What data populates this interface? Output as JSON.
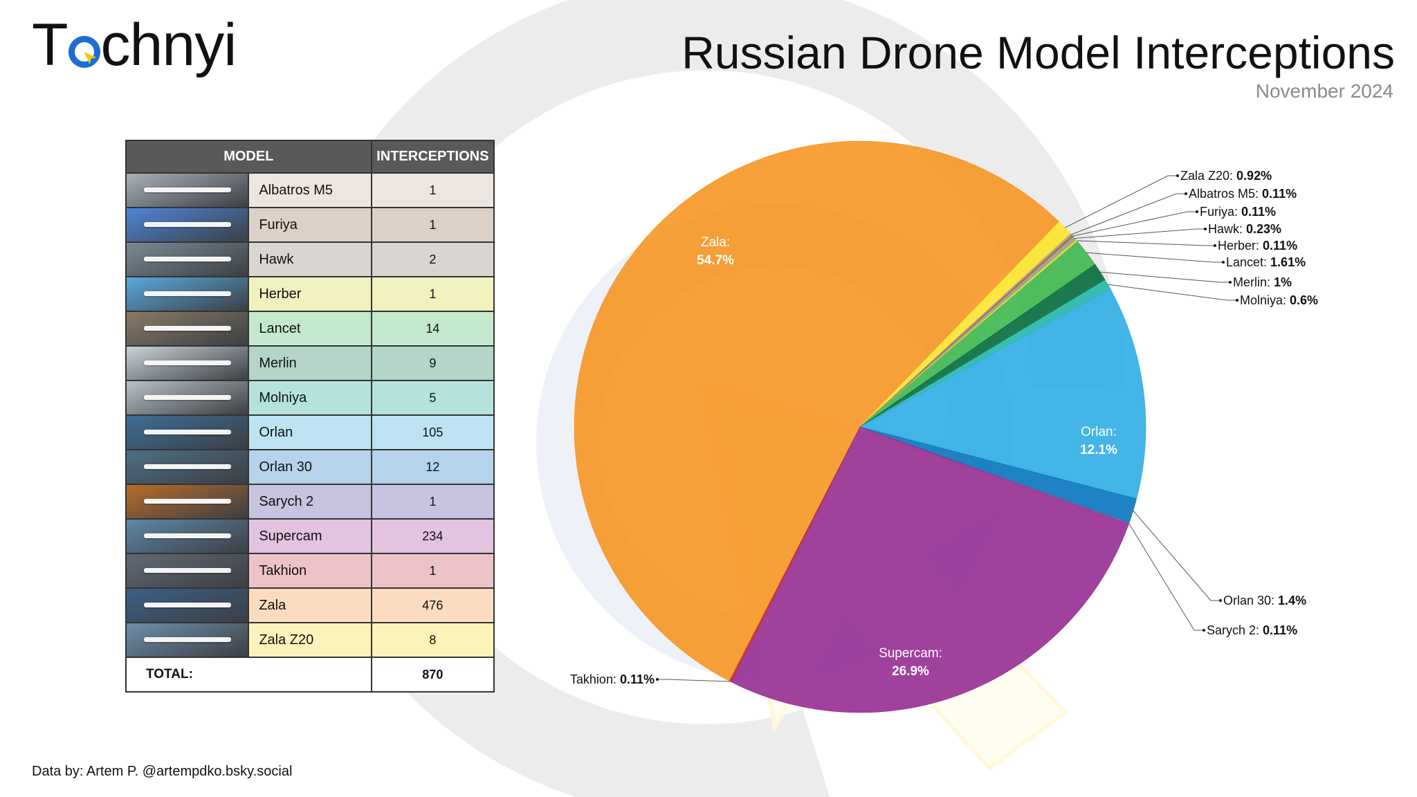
{
  "brand": {
    "logo_text_before": "T",
    "logo_text_after": "chnyi"
  },
  "header": {
    "title": "Russian Drone Model Interceptions",
    "subtitle": "November 2024"
  },
  "table": {
    "col_model": "MODEL",
    "col_interceptions": "INTERCEPTIONS",
    "rows": [
      {
        "model": "Albatros M5",
        "interceptions": "1",
        "row_color": "#ede6e0",
        "thumb_color": "#a9b1b9"
      },
      {
        "model": "Furiya",
        "interceptions": "1",
        "row_color": "#ddd0c6",
        "thumb_color": "#4f86d9"
      },
      {
        "model": "Hawk",
        "interceptions": "2",
        "row_color": "#d9d5d1",
        "thumb_color": "#7a8b96"
      },
      {
        "model": "Herber",
        "interceptions": "1",
        "row_color": "#f1f1c0",
        "thumb_color": "#5aa9dd"
      },
      {
        "model": "Lancet",
        "interceptions": "14",
        "row_color": "#c4e8cb",
        "thumb_color": "#8a7a65"
      },
      {
        "model": "Merlin",
        "interceptions": "9",
        "row_color": "#b4d5c7",
        "thumb_color": "#c9d3d8"
      },
      {
        "model": "Molniya",
        "interceptions": "5",
        "row_color": "#b3e3dc",
        "thumb_color": "#b9c2c6"
      },
      {
        "model": "Orlan",
        "interceptions": "105",
        "row_color": "#bde3f2",
        "thumb_color": "#3e6d96"
      },
      {
        "model": "Orlan 30",
        "interceptions": "12",
        "row_color": "#b5d3ea",
        "thumb_color": "#4f6e84"
      },
      {
        "model": "Sarych 2",
        "interceptions": "1",
        "row_color": "#c6c4df",
        "thumb_color": "#b86b2a"
      },
      {
        "model": "Supercam",
        "interceptions": "234",
        "row_color": "#e2c3e0",
        "thumb_color": "#5f87a6"
      },
      {
        "model": "Takhion",
        "interceptions": "1",
        "row_color": "#edc3c8",
        "thumb_color": "#606a73"
      },
      {
        "model": "Zala",
        "interceptions": "476",
        "row_color": "#fbdcc0",
        "thumb_color": "#3c5f86"
      },
      {
        "model": "Zala Z20",
        "interceptions": "8",
        "row_color": "#fbf3b9",
        "thumb_color": "#6f8fa9"
      }
    ],
    "total_label": "TOTAL:",
    "total_value": "870"
  },
  "chart_data": {
    "type": "pie",
    "title": "Russian Drone Model Interceptions",
    "subtitle": "November 2024",
    "slices": [
      {
        "name": "Zala",
        "value": 476,
        "percent": "54.7%",
        "color": "#f7931e",
        "label_style": "inside"
      },
      {
        "name": "Zala Z20",
        "value": 8,
        "percent": "0.92%",
        "color": "#fbe627",
        "label_style": "callout"
      },
      {
        "name": "Albatros M5",
        "value": 1,
        "percent": "0.11%",
        "color": "#c69c6d",
        "label_style": "callout"
      },
      {
        "name": "Furiya",
        "value": 1,
        "percent": "0.11%",
        "color": "#8b6d4c",
        "label_style": "callout"
      },
      {
        "name": "Hawk",
        "value": 2,
        "percent": "0.23%",
        "color": "#a19788",
        "label_style": "callout"
      },
      {
        "name": "Herber",
        "value": 1,
        "percent": "0.11%",
        "color": "#d7df23",
        "label_style": "callout"
      },
      {
        "name": "Lancet",
        "value": 14,
        "percent": "1.61%",
        "color": "#39b54a",
        "label_style": "callout"
      },
      {
        "name": "Merlin",
        "value": 9,
        "percent": "1%",
        "color": "#006837",
        "label_style": "callout"
      },
      {
        "name": "Molniya",
        "value": 5,
        "percent": "0.6%",
        "color": "#1fb5a6",
        "label_style": "callout"
      },
      {
        "name": "Orlan",
        "value": 105,
        "percent": "12.1%",
        "color": "#29abe2",
        "label_style": "inside"
      },
      {
        "name": "Orlan 30",
        "value": 12,
        "percent": "1.4%",
        "color": "#0071bc",
        "label_style": "callout"
      },
      {
        "name": "Sarych 2",
        "value": 1,
        "percent": "0.11%",
        "color": "#5b57a6",
        "label_style": "callout"
      },
      {
        "name": "Supercam",
        "value": 234,
        "percent": "26.9%",
        "color": "#93278f",
        "label_style": "inside"
      },
      {
        "name": "Takhion",
        "value": 1,
        "percent": "0.11%",
        "color": "#c1272d",
        "label_style": "callout"
      }
    ],
    "total": 870,
    "legend": "none"
  },
  "footer": {
    "credit": "Data by: Artem P. @artempdko.bsky.social"
  }
}
